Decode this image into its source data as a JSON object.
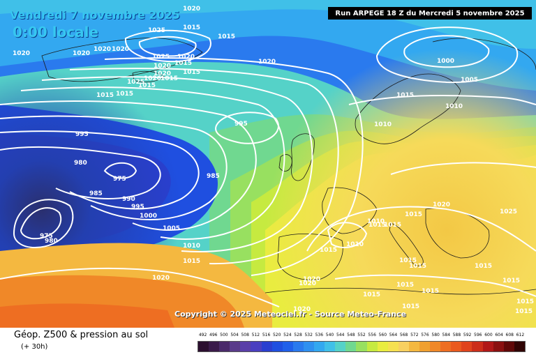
{
  "header": {
    "date": "Vendredi 7 novembre 2025",
    "time": "0:00 locale",
    "run": "Run ARPEGE 18 Z du Mercredi 5 novembre 2025"
  },
  "copyright": "Copyright © 2025 Meteociel.fr - Source Meteo-France",
  "footer": {
    "title": "Géop. Z500 & pression au sol",
    "subtitle": "(+ 30h)"
  },
  "legend": {
    "labels": [
      "492",
      "496",
      "500",
      "504",
      "508",
      "512",
      "516",
      "520",
      "524",
      "528",
      "532",
      "536",
      "540",
      "544",
      "548",
      "552",
      "556",
      "560",
      "564",
      "568",
      "572",
      "576",
      "580",
      "584",
      "588",
      "592",
      "596",
      "600",
      "604",
      "608",
      "612"
    ],
    "colors": [
      "#2b0f2f",
      "#3a1a4a",
      "#4a2a6a",
      "#5a3b8a",
      "#5a3fa8",
      "#4a3fc0",
      "#2a3fd0",
      "#1f4fe0",
      "#2060ea",
      "#2a7aee",
      "#2f90f0",
      "#33a8f0",
      "#40c0e8",
      "#55d2c8",
      "#70d890",
      "#98e060",
      "#c6ea40",
      "#e9ec40",
      "#f6e050",
      "#f8d060",
      "#f4b840",
      "#f0a030",
      "#f08828",
      "#ee6e22",
      "#ea5a1e",
      "#e0441c",
      "#cc2e1a",
      "#b01818",
      "#8a1010",
      "#600808",
      "#300404"
    ]
  },
  "isobars": [
    {
      "label": "1020",
      "hide": false
    },
    {
      "label": "1025",
      "hide": false
    },
    {
      "label": "1015",
      "hide": false
    },
    {
      "label": "1015",
      "hide": false
    },
    {
      "label": "1020",
      "hide": false
    },
    {
      "label": "1020",
      "hide": false
    },
    {
      "label": "1020",
      "hide": false
    },
    {
      "label": "1020",
      "hide": false
    },
    {
      "label": "1025",
      "hide": false
    },
    {
      "label": "1020",
      "hide": false
    },
    {
      "label": "1020",
      "hide": false
    },
    {
      "label": "1015",
      "hide": false
    },
    {
      "label": "1020",
      "hide": false
    },
    {
      "label": "1015",
      "hide": false
    },
    {
      "label": "1025",
      "hide": false
    },
    {
      "label": "1020",
      "hide": false
    },
    {
      "label": "1015",
      "hide": false
    },
    {
      "label": "1015",
      "hide": false
    },
    {
      "label": "1020",
      "hide": false
    },
    {
      "label": "1015",
      "hide": false
    },
    {
      "label": "1015",
      "hide": false
    },
    {
      "label": "995",
      "hide": false
    },
    {
      "label": "995",
      "hide": false
    },
    {
      "label": "980",
      "hide": false
    },
    {
      "label": "975",
      "hide": false
    },
    {
      "label": "985",
      "hide": false
    },
    {
      "label": "985",
      "hide": false
    },
    {
      "label": "990",
      "hide": false
    },
    {
      "label": "995",
      "hide": false
    },
    {
      "label": "1000",
      "hide": false
    },
    {
      "label": "1005",
      "hide": false
    },
    {
      "label": "1010",
      "hide": false
    },
    {
      "label": "1015",
      "hide": false
    },
    {
      "label": "975",
      "hide": false
    },
    {
      "label": "980",
      "hide": false
    },
    {
      "label": "1020",
      "hide": false
    },
    {
      "label": "1020",
      "hide": false
    },
    {
      "label": "1020",
      "hide": false
    },
    {
      "label": "1000",
      "hide": false
    },
    {
      "label": "1005",
      "hide": false
    },
    {
      "label": "1010",
      "hide": false
    },
    {
      "label": "1010",
      "hide": false
    },
    {
      "label": "1015",
      "hide": false
    },
    {
      "label": "1020",
      "hide": false
    },
    {
      "label": "1025",
      "hide": false
    },
    {
      "label": "1010",
      "hide": false
    },
    {
      "label": "1015",
      "hide": false
    },
    {
      "label": "1015",
      "hide": false
    },
    {
      "label": "1010",
      "hide": false
    },
    {
      "label": "1015",
      "hide": false
    },
    {
      "label": "1015",
      "hide": false
    },
    {
      "label": "1015",
      "hide": false
    },
    {
      "label": "1015",
      "hide": false
    },
    {
      "label": "1015",
      "hide": false
    },
    {
      "label": "1015",
      "hide": false
    },
    {
      "label": "1015",
      "hide": false
    },
    {
      "label": "1015",
      "hide": false
    },
    {
      "label": "1020",
      "hide": false
    },
    {
      "label": "1015",
      "hide": false
    },
    {
      "label": "1015",
      "hide": false
    },
    {
      "label": "1015",
      "hide": false
    },
    {
      "label": "1015",
      "hide": false
    }
  ]
}
